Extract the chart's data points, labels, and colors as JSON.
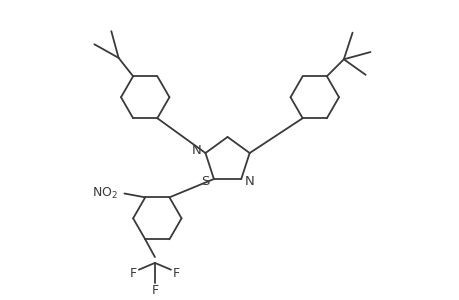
{
  "background_color": "#ffffff",
  "line_color": "#3a3a3a",
  "line_width": 1.3,
  "font_size": 9.5,
  "figsize": [
    4.6,
    3.0
  ],
  "dpi": 100,
  "xlim": [
    0,
    9.2
  ],
  "ylim": [
    0,
    6.0
  ]
}
